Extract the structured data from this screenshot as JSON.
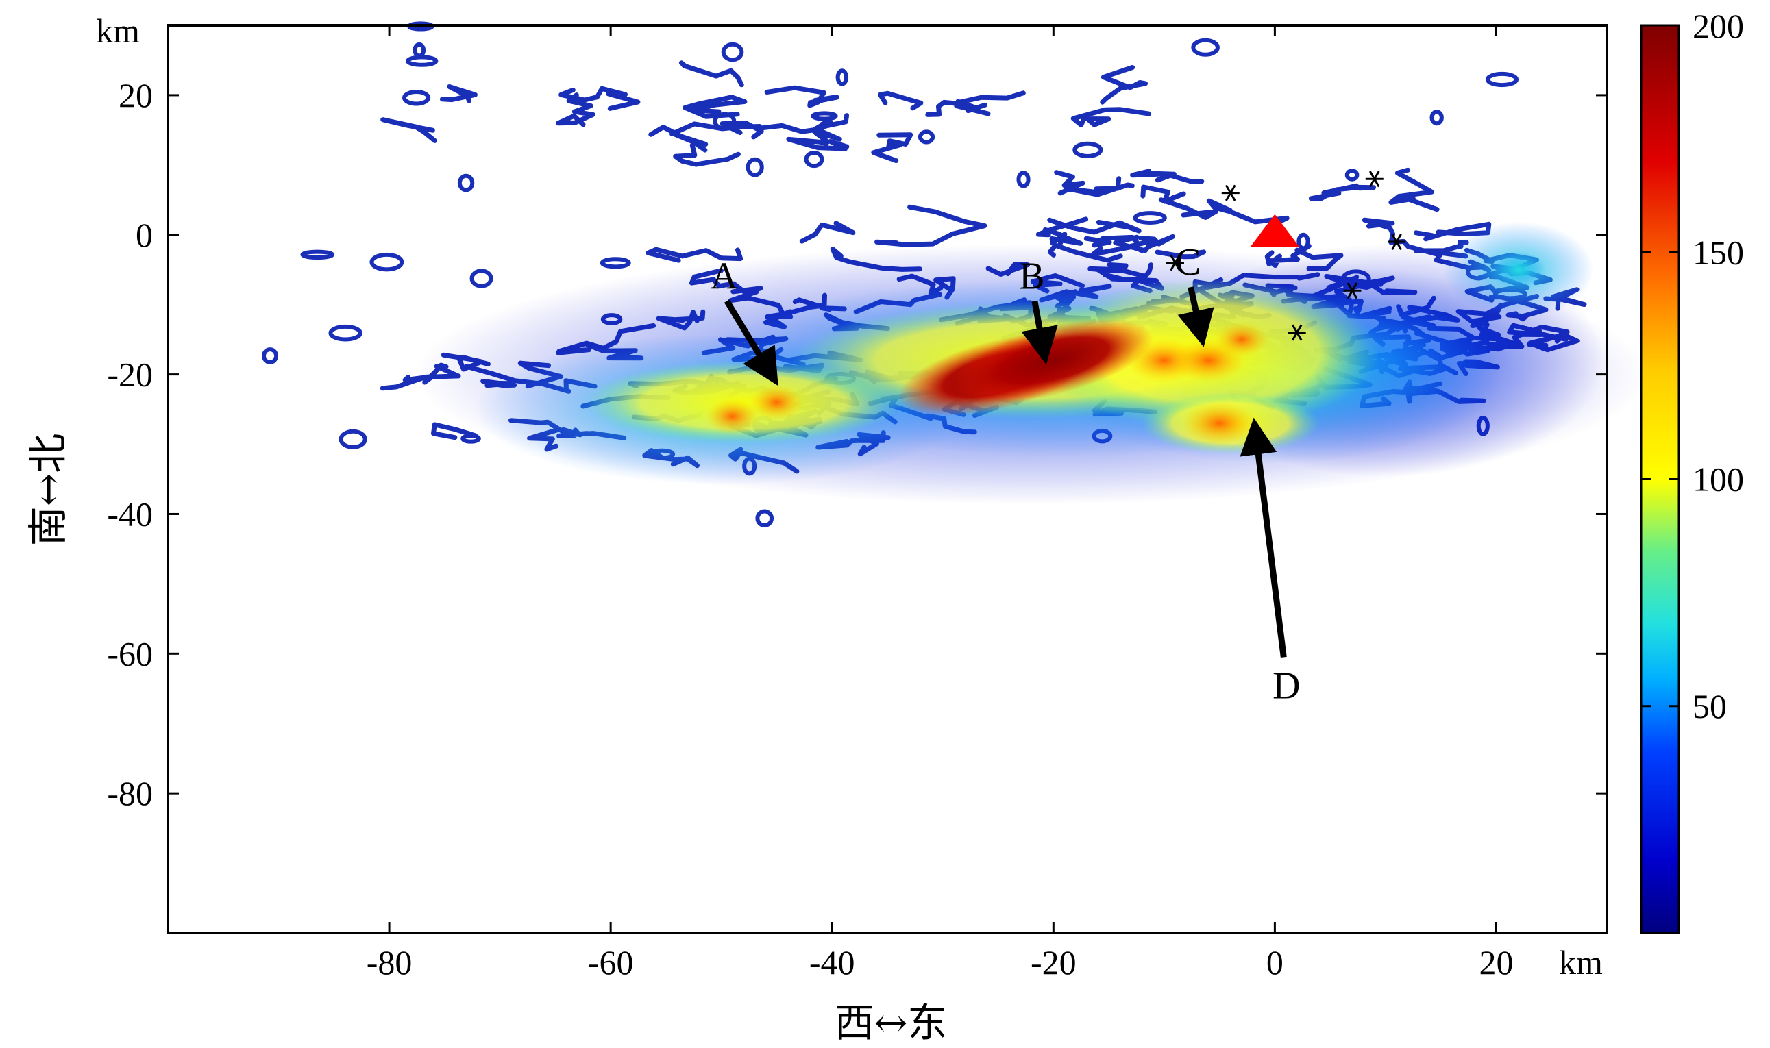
{
  "chart_data": {
    "type": "heatmap",
    "xlim": [
      -100,
      30
    ],
    "ylim": [
      -100,
      30
    ],
    "x_ticks": [
      "-80",
      "-60",
      "-40",
      "-20",
      "0",
      "20"
    ],
    "x_tick_values": [
      -80,
      -60,
      -40,
      -20,
      0,
      20
    ],
    "y_ticks": [
      "20",
      "0",
      "-20",
      "-40",
      "-60",
      "-80"
    ],
    "y_tick_values": [
      20,
      0,
      -20,
      -40,
      -60,
      -80
    ],
    "x_unit": "km",
    "y_unit": "km",
    "xlabel": "西↔东",
    "ylabel": "南↔北",
    "colorbar": {
      "ticks": [
        "50",
        "100",
        "150",
        "200"
      ],
      "tick_values": [
        50,
        100,
        150,
        200
      ],
      "range": [
        0,
        200
      ],
      "colors": [
        "#00007f",
        "#0000ff",
        "#00a8ff",
        "#22e0e0",
        "#66ee88",
        "#ffff00",
        "#ffaa00",
        "#ff2000",
        "#8b0000"
      ]
    },
    "hotspots": [
      {
        "x": -25,
        "y": -20,
        "value": 200
      },
      {
        "x": -20,
        "y": -18,
        "value": 190
      },
      {
        "x": -10,
        "y": -18,
        "value": 180
      },
      {
        "x": -6,
        "y": -18,
        "value": 160
      },
      {
        "x": -5,
        "y": -27,
        "value": 165
      },
      {
        "x": -49,
        "y": -26,
        "value": 140
      },
      {
        "x": -45,
        "y": -24,
        "value": 120
      },
      {
        "x": -3,
        "y": -15,
        "value": 140
      },
      {
        "x": 22,
        "y": -5,
        "value": 60
      }
    ],
    "annotations": [
      {
        "label": "A",
        "from": [
          -49.5,
          -9.5
        ],
        "to": [
          -45.3,
          -20.5
        ]
      },
      {
        "label": "B",
        "from": [
          -21.7,
          -9.5
        ],
        "to": [
          -20.8,
          -17.3
        ]
      },
      {
        "label": "C",
        "from": [
          -7.6,
          -7.5
        ],
        "to": [
          -6.6,
          -14.8
        ]
      },
      {
        "label": "D",
        "from": [
          0.8,
          -60.5
        ],
        "to": [
          -1.8,
          -27.5
        ]
      }
    ],
    "markers": {
      "triangle": {
        "x": 0,
        "y": 0,
        "color": "#ff0000"
      },
      "stars": [
        {
          "x": -9,
          "y": -4
        },
        {
          "x": -4,
          "y": 6
        },
        {
          "x": 7,
          "y": -8
        },
        {
          "x": 9,
          "y": 8
        },
        {
          "x": 11,
          "y": -1
        },
        {
          "x": 2,
          "y": -14
        }
      ]
    }
  }
}
